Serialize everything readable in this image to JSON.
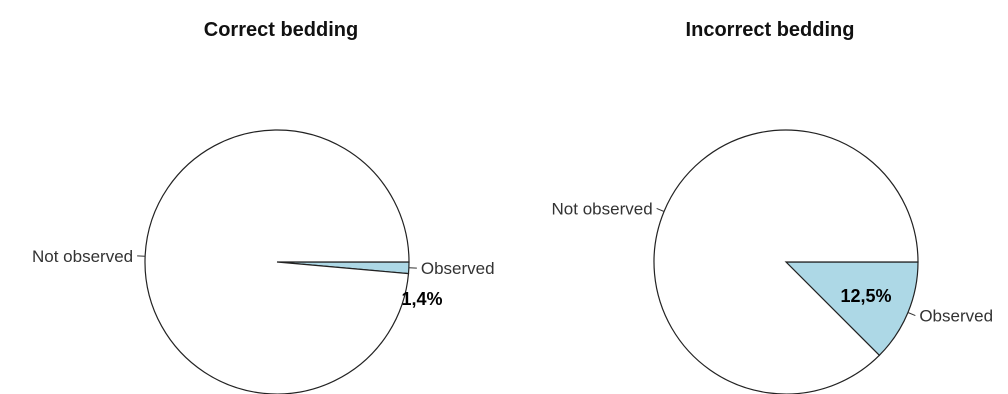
{
  "chart_data": [
    {
      "type": "pie",
      "title": "Correct bedding",
      "slices": [
        {
          "label": "Observed",
          "percent": 1.4,
          "color": "#add8e6",
          "annotation": "1,4%"
        },
        {
          "label": "Not observed",
          "percent": 98.6,
          "color": "#ffffff",
          "annotation": ""
        }
      ]
    },
    {
      "type": "pie",
      "title": "Incorrect bedding",
      "slices": [
        {
          "label": "Observed",
          "percent": 12.5,
          "color": "#add8e6",
          "annotation": "12,5%"
        },
        {
          "label": "Not observed",
          "percent": 87.5,
          "color": "#ffffff",
          "annotation": ""
        }
      ]
    }
  ]
}
